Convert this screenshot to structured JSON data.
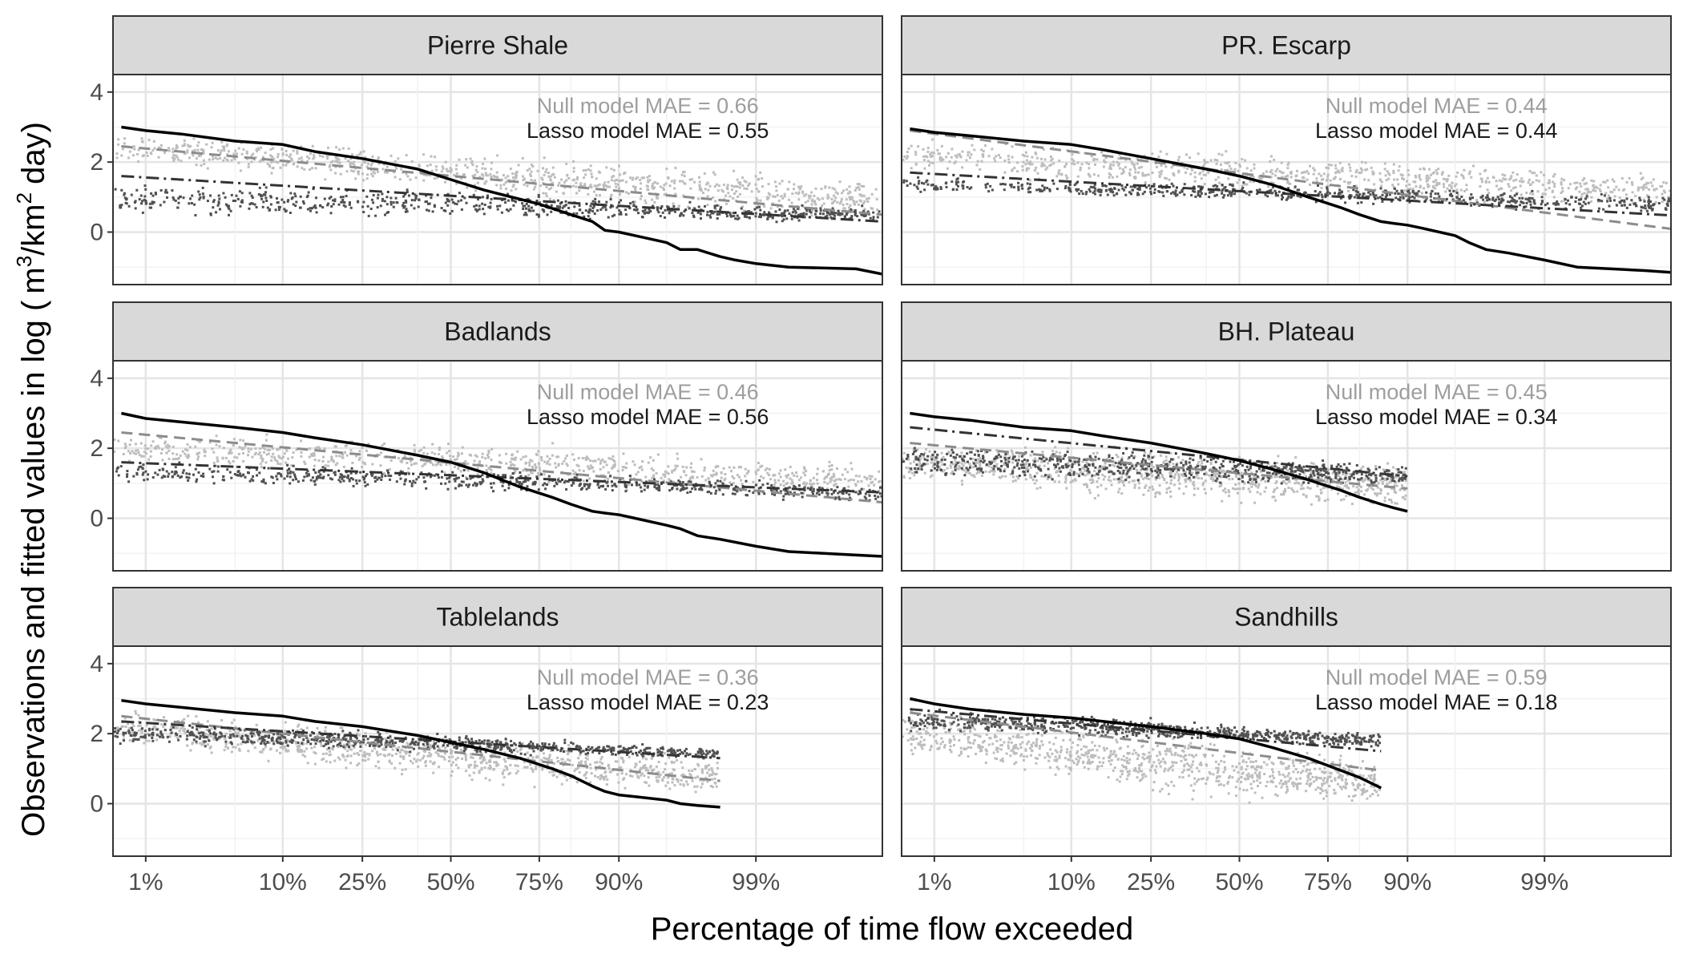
{
  "figure": {
    "ylabel_prefix": "Observations and fitted values in log (",
    "ylabel_unit_a": "m",
    "ylabel_sup_a": "3",
    "ylabel_unit_b": "/km",
    "ylabel_sup_b": "2",
    "ylabel_unit_c": "day)",
    "xlabel": "Percentage of time flow exceeded"
  },
  "colors": {
    "null_points": "#bdbdbd",
    "lasso_points": "#505050",
    "observed_line": "#000000",
    "null_fit_line": "#8c8c8c",
    "lasso_fit_line": "#333333",
    "null_text": "#9e9e9e",
    "lasso_text": "#1a1a1a",
    "strip_fill": "#d9d9d9",
    "grid_major": "#e5e5e5",
    "grid_minor": "#f2f2f2"
  },
  "chart_data": {
    "type": "scatter",
    "layout": "facet grid 3 rows x 2 columns",
    "x_scale": "probit (normal quantile) of exceedance percentage",
    "x_tick_labels": [
      "1%",
      "10%",
      "25%",
      "50%",
      "75%",
      "90%",
      "99%"
    ],
    "x_tick_values": [
      1,
      10,
      25,
      50,
      75,
      90,
      99
    ],
    "xlim": [
      0.5,
      99.95
    ],
    "ylim": [
      -1.5,
      4.5
    ],
    "y_ticks": [
      0,
      2,
      4
    ],
    "xlabel": "Percentage of time flow exceeded",
    "ylabel": "Observations and fitted values in log ( m3/km2 day)",
    "grid": true,
    "legend": "none",
    "panels": [
      {
        "name": "Pierre Shale",
        "null_mae_label": "Null model MAE = 0.66",
        "lasso_mae_label": "Lasso model MAE = 0.55",
        "x_max": 99.95,
        "observed": {
          "x": [
            0.6,
            1,
            2,
            5,
            10,
            15,
            25,
            40,
            50,
            60,
            75,
            82,
            86,
            88,
            90,
            92,
            95,
            96,
            97,
            98,
            98.5,
            99,
            99.5,
            99.9,
            99.95
          ],
          "y": [
            3.0,
            2.9,
            2.8,
            2.6,
            2.5,
            2.3,
            2.1,
            1.8,
            1.5,
            1.2,
            0.8,
            0.5,
            0.3,
            0.05,
            0.0,
            -0.1,
            -0.3,
            -0.5,
            -0.5,
            -0.7,
            -0.8,
            -0.9,
            -1.0,
            -1.05,
            -1.2
          ]
        },
        "null_fit": {
          "x": [
            0.6,
            99.95
          ],
          "y": [
            2.45,
            0.5
          ]
        },
        "lasso_fit": {
          "x": [
            0.6,
            99.95
          ],
          "y": [
            1.6,
            0.3
          ]
        },
        "null_cloud": {
          "upper": [
            3.1,
            2.9,
            2.6,
            2.4,
            2.2,
            1.8
          ],
          "lower": [
            1.8,
            1.4,
            1.0,
            0.6,
            0.2,
            0.0
          ]
        },
        "lasso_cloud": {
          "upper": [
            1.8,
            1.6,
            1.5,
            1.2,
            1.0,
            0.9
          ],
          "lower": [
            0.2,
            0.2,
            0.2,
            0.2,
            0.2,
            0.2
          ]
        }
      },
      {
        "name": "PR. Escarp",
        "null_mae_label": "Null model MAE = 0.44",
        "lasso_mae_label": "Lasso model MAE = 0.44",
        "x_max": 99.995,
        "observed": {
          "x": [
            0.6,
            1,
            2,
            5,
            10,
            15,
            25,
            40,
            50,
            60,
            70,
            78,
            82,
            86,
            88,
            90,
            92,
            95,
            96,
            97,
            98,
            99,
            99.5,
            99.9,
            99.995
          ],
          "y": [
            2.95,
            2.85,
            2.75,
            2.6,
            2.5,
            2.35,
            2.1,
            1.8,
            1.6,
            1.35,
            1.0,
            0.7,
            0.5,
            0.3,
            0.25,
            0.2,
            0.1,
            -0.1,
            -0.3,
            -0.5,
            -0.6,
            -0.8,
            -1.0,
            -1.1,
            -1.3
          ]
        },
        "null_fit": {
          "x": [
            0.6,
            99.995
          ],
          "y": [
            2.9,
            -0.2
          ]
        },
        "lasso_fit": {
          "x": [
            0.6,
            99.995
          ],
          "y": [
            1.7,
            0.35
          ]
        },
        "null_cloud": {
          "upper": [
            3.0,
            2.8,
            2.6,
            2.4,
            2.1,
            1.8
          ],
          "lower": [
            1.5,
            1.1,
            0.9,
            0.7,
            0.5,
            0.4
          ]
        },
        "lasso_cloud": {
          "upper": [
            1.7,
            1.6,
            1.6,
            1.4,
            1.3,
            1.1
          ],
          "lower": [
            1.1,
            0.9,
            0.8,
            0.7,
            0.5,
            0.4
          ]
        }
      },
      {
        "name": "Badlands",
        "null_mae_label": "Null model MAE = 0.46",
        "lasso_mae_label": "Lasso model MAE = 0.56",
        "x_max": 99.995,
        "observed": {
          "x": [
            0.6,
            1,
            2,
            5,
            10,
            15,
            25,
            40,
            50,
            60,
            70,
            78,
            82,
            86,
            88,
            90,
            92,
            95,
            96,
            97,
            98,
            99,
            99.5,
            99.9,
            99.995
          ],
          "y": [
            3.0,
            2.85,
            2.75,
            2.6,
            2.45,
            2.3,
            2.1,
            1.8,
            1.6,
            1.3,
            0.9,
            0.6,
            0.4,
            0.2,
            0.15,
            0.1,
            0.0,
            -0.2,
            -0.3,
            -0.5,
            -0.6,
            -0.8,
            -0.95,
            -1.05,
            -1.2
          ]
        },
        "null_fit": {
          "x": [
            0.6,
            99.995
          ],
          "y": [
            2.45,
            0.25
          ]
        },
        "lasso_fit": {
          "x": [
            0.6,
            99.995
          ],
          "y": [
            1.6,
            0.65
          ]
        },
        "null_cloud": {
          "upper": [
            2.7,
            2.6,
            2.5,
            2.3,
            2.0,
            1.7
          ],
          "lower": [
            1.4,
            1.1,
            0.9,
            0.6,
            0.4,
            0.3
          ]
        },
        "lasso_cloud": {
          "upper": [
            1.8,
            1.7,
            1.6,
            1.4,
            1.2,
            1.0
          ],
          "lower": [
            0.9,
            0.8,
            0.7,
            0.6,
            0.4,
            0.3
          ]
        }
      },
      {
        "name": "BH. Plateau",
        "null_mae_label": "Null model MAE = 0.45",
        "lasso_mae_label": "Lasso model MAE = 0.34",
        "x_max": 90,
        "observed": {
          "x": [
            0.6,
            1,
            2,
            5,
            10,
            15,
            25,
            40,
            50,
            60,
            70,
            78,
            82,
            86,
            88,
            90
          ],
          "y": [
            3.0,
            2.9,
            2.8,
            2.6,
            2.5,
            2.35,
            2.15,
            1.85,
            1.65,
            1.4,
            1.1,
            0.8,
            0.6,
            0.4,
            0.3,
            0.2
          ]
        },
        "null_fit": {
          "x": [
            0.6,
            90
          ],
          "y": [
            2.15,
            0.85
          ]
        },
        "lasso_fit": {
          "x": [
            0.6,
            90
          ],
          "y": [
            2.6,
            1.2
          ]
        },
        "null_cloud": {
          "upper": [
            2.5,
            2.5,
            2.4,
            2.3,
            2.2,
            2.0
          ],
          "lower": [
            0.8,
            0.5,
            0.3,
            0.1,
            0.0,
            -0.1
          ]
        },
        "lasso_cloud": {
          "upper": [
            2.4,
            2.3,
            2.2,
            2.1,
            1.9,
            1.7
          ],
          "lower": [
            0.9,
            0.9,
            0.9,
            0.8,
            0.8,
            0.8
          ]
        }
      },
      {
        "name": "Tablelands",
        "null_mae_label": "Null model MAE = 0.36",
        "lasso_mae_label": "Lasso model MAE = 0.23",
        "x_max": 98,
        "observed": {
          "x": [
            0.6,
            1,
            2,
            5,
            10,
            15,
            25,
            40,
            50,
            60,
            70,
            78,
            82,
            86,
            88,
            90,
            92,
            95,
            96,
            97,
            98
          ],
          "y": [
            2.95,
            2.85,
            2.75,
            2.6,
            2.5,
            2.35,
            2.2,
            1.95,
            1.75,
            1.55,
            1.3,
            1.0,
            0.8,
            0.5,
            0.35,
            0.25,
            0.2,
            0.1,
            0.0,
            -0.05,
            -0.1
          ]
        },
        "null_fit": {
          "x": [
            0.6,
            98
          ],
          "y": [
            2.5,
            0.65
          ]
        },
        "lasso_fit": {
          "x": [
            0.6,
            98
          ],
          "y": [
            2.35,
            1.3
          ]
        },
        "null_cloud": {
          "upper": [
            3.0,
            2.8,
            2.6,
            2.3,
            2.0,
            1.6
          ],
          "lower": [
            1.5,
            1.0,
            0.6,
            0.3,
            0.1,
            0.0
          ]
        },
        "lasso_cloud": {
          "upper": [
            2.5,
            2.4,
            2.3,
            2.1,
            1.9,
            1.7
          ],
          "lower": [
            1.5,
            1.5,
            1.4,
            1.3,
            1.3,
            1.2
          ]
        }
      },
      {
        "name": "Sandhills",
        "null_mae_label": "Null model MAE = 0.59",
        "lasso_mae_label": "Lasso model MAE = 0.18",
        "x_max": 86,
        "observed": {
          "x": [
            0.6,
            1,
            2,
            5,
            10,
            15,
            25,
            40,
            50,
            60,
            70,
            78,
            82,
            86
          ],
          "y": [
            3.0,
            2.85,
            2.7,
            2.55,
            2.45,
            2.35,
            2.2,
            2.0,
            1.85,
            1.6,
            1.3,
            0.95,
            0.75,
            0.45
          ]
        },
        "null_fit": {
          "x": [
            0.6,
            86
          ],
          "y": [
            2.6,
            0.95
          ]
        },
        "lasso_fit": {
          "x": [
            0.6,
            86
          ],
          "y": [
            2.7,
            1.5
          ]
        },
        "null_cloud": {
          "upper": [
            3.0,
            2.8,
            2.6,
            2.4,
            2.0,
            1.5
          ],
          "lower": [
            1.2,
            0.6,
            0.2,
            -0.2,
            -0.3,
            -0.3
          ]
        },
        "lasso_cloud": {
          "upper": [
            2.9,
            2.8,
            2.7,
            2.5,
            2.3,
            2.2
          ],
          "lower": [
            1.9,
            1.9,
            1.8,
            1.7,
            1.6,
            1.5
          ]
        }
      }
    ]
  }
}
